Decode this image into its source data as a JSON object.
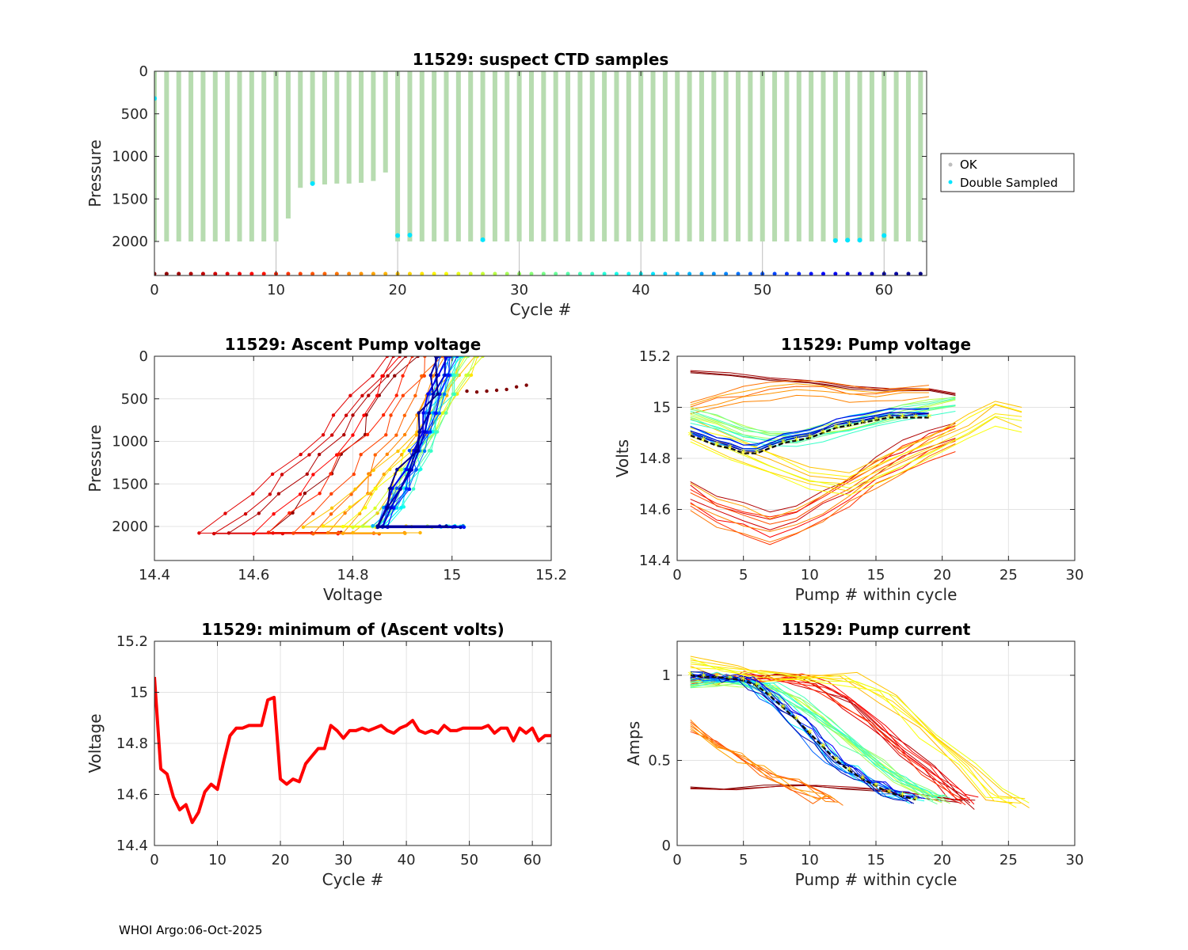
{
  "footer": "WHOI Argo:06-Oct-2025",
  "chart_data": [
    {
      "id": "ctd",
      "type": "scatter",
      "title": "11529: suspect CTD samples",
      "xlabel": "Cycle #",
      "ylabel": "Pressure",
      "xlim": [
        0,
        63.5
      ],
      "ylim": [
        2400,
        0
      ],
      "xticks": [
        0,
        10,
        20,
        30,
        40,
        50,
        60
      ],
      "yticks": [
        0,
        500,
        1000,
        1500,
        2000
      ],
      "legend": {
        "position": "right",
        "entries": [
          "OK",
          "Double Sampled"
        ]
      },
      "ok_profiles": {
        "cycles": [
          0,
          1,
          2,
          3,
          4,
          5,
          6,
          7,
          8,
          9,
          10,
          11,
          12,
          13,
          14,
          15,
          16,
          17,
          18,
          19,
          20,
          21,
          22,
          23,
          24,
          25,
          26,
          27,
          28,
          29,
          30,
          31,
          32,
          33,
          34,
          35,
          36,
          37,
          38,
          39,
          40,
          41,
          42,
          43,
          44,
          45,
          46,
          47,
          48,
          49,
          50,
          51,
          52,
          53,
          54,
          55,
          56,
          57,
          58,
          59,
          60,
          61,
          62,
          63
        ],
        "top": 0,
        "max_pressure": [
          2000,
          2000,
          2000,
          2000,
          2000,
          2000,
          2000,
          2000,
          2000,
          2000,
          2000,
          1730,
          1370,
          1330,
          1330,
          1320,
          1320,
          1310,
          1290,
          1190,
          2000,
          2000,
          2000,
          2000,
          2000,
          2000,
          2000,
          2000,
          2000,
          2000,
          2000,
          2000,
          2000,
          2000,
          2000,
          2000,
          2000,
          2000,
          2000,
          2000,
          2000,
          2000,
          2000,
          2000,
          2000,
          2000,
          2000,
          2000,
          2000,
          2000,
          2000,
          2000,
          2000,
          2000,
          2000,
          2000,
          2000,
          2000,
          2000,
          2000,
          2000,
          2000,
          2000,
          2000
        ]
      },
      "double_sampled": [
        {
          "cycle": 0,
          "pressure": 320
        },
        {
          "cycle": 13,
          "pressure": 1320
        },
        {
          "cycle": 20,
          "pressure": 1930
        },
        {
          "cycle": 21,
          "pressure": 1925
        },
        {
          "cycle": 27,
          "pressure": 1980
        },
        {
          "cycle": 56,
          "pressure": 1990
        },
        {
          "cycle": 57,
          "pressure": 1985
        },
        {
          "cycle": 58,
          "pressure": 1985
        },
        {
          "cycle": 60,
          "pressure": 1930
        }
      ],
      "cycle_markers_pressure": 2380,
      "drop_lines_cycles": [
        10,
        20,
        30,
        40,
        50,
        60
      ]
    },
    {
      "id": "ascent",
      "type": "line",
      "title": "11529: Ascent Pump voltage",
      "xlabel": "Voltage",
      "ylabel": "Pressure",
      "xlim": [
        14.4,
        15.2
      ],
      "ylim": [
        2400,
        0
      ],
      "xticks": [
        14.4,
        14.6,
        14.8,
        15,
        15.2
      ],
      "yticks": [
        0,
        500,
        1000,
        1500,
        2000
      ],
      "note": "one pressure-vs-voltage profile per cycle, colored by cycle (jet colormap)",
      "profile_endpoints": {
        "cycles": [
          1,
          3,
          5,
          6,
          8,
          10,
          12,
          14,
          16,
          18,
          19,
          20,
          22,
          24,
          26,
          28,
          30,
          32,
          34,
          36,
          38,
          40,
          42,
          44,
          46,
          48,
          50,
          52,
          54,
          56,
          58,
          60,
          62
        ],
        "bottom_voltage": [
          14.63,
          14.55,
          14.52,
          14.49,
          14.6,
          14.63,
          14.68,
          14.72,
          14.75,
          14.78,
          14.8,
          14.7,
          14.74,
          14.78,
          14.8,
          14.82,
          14.84,
          14.85,
          14.85,
          14.86,
          14.87,
          14.86,
          14.85,
          14.84,
          14.85,
          14.86,
          14.86,
          14.87,
          14.87,
          14.85,
          14.86,
          14.85,
          14.85
        ],
        "top_voltage": [
          14.92,
          14.9,
          14.88,
          14.87,
          14.9,
          14.93,
          14.96,
          14.97,
          14.98,
          15.0,
          15.02,
          15.05,
          15.06,
          15.04,
          15.05,
          15.04,
          15.03,
          15.02,
          15.03,
          15.02,
          15.0,
          15.01,
          15.0,
          15.0,
          15.0,
          15.0,
          14.99,
          15.0,
          14.99,
          14.99,
          14.99,
          14.98,
          14.98
        ]
      },
      "outlier_cycle0": [
        {
          "voltage": 15.03,
          "pressure": 410
        },
        {
          "voltage": 15.05,
          "pressure": 420
        },
        {
          "voltage": 15.07,
          "pressure": 410
        },
        {
          "voltage": 15.09,
          "pressure": 400
        },
        {
          "voltage": 15.11,
          "pressure": 390
        },
        {
          "voltage": 15.13,
          "pressure": 360
        },
        {
          "voltage": 15.15,
          "pressure": 340
        }
      ]
    },
    {
      "id": "pumpvolt",
      "type": "line",
      "title": "11529: Pump voltage",
      "xlabel": "Pump # within cycle",
      "ylabel": "Volts",
      "xlim": [
        0,
        30
      ],
      "ylim": [
        14.4,
        15.2
      ],
      "xticks": [
        0,
        5,
        10,
        15,
        20,
        25,
        30
      ],
      "yticks": [
        14.4,
        14.6,
        14.8,
        15,
        15.2
      ],
      "yticklabels": [
        "14.4",
        "14.6",
        "14.8",
        "15",
        "15.2"
      ],
      "blue_group": {
        "x": [
          1,
          2,
          3,
          4,
          5,
          6,
          7,
          8,
          9,
          10,
          11,
          12,
          13,
          14,
          15,
          16,
          17,
          18,
          19
        ],
        "y": [
          14.91,
          14.89,
          14.87,
          14.86,
          14.84,
          14.84,
          14.86,
          14.88,
          14.89,
          14.9,
          14.92,
          14.94,
          14.95,
          14.96,
          14.97,
          14.98,
          14.98,
          14.98,
          14.98
        ]
      },
      "green_group": {
        "x": [
          1,
          3,
          5,
          7,
          9,
          11,
          13,
          15,
          17,
          19,
          21
        ],
        "y": [
          14.97,
          14.94,
          14.9,
          14.88,
          14.88,
          14.9,
          14.92,
          14.95,
          14.98,
          15.0,
          15.02
        ]
      },
      "red_group": {
        "x": [
          1,
          3,
          5,
          7,
          9,
          11,
          13,
          15,
          17,
          19,
          21
        ],
        "y": [
          14.66,
          14.6,
          14.57,
          14.53,
          14.55,
          14.62,
          14.68,
          14.75,
          14.81,
          14.86,
          14.9
        ]
      },
      "yellow_group": {
        "x": [
          1,
          4,
          7,
          10,
          13,
          16,
          19,
          22,
          24,
          26
        ],
        "y": [
          14.9,
          14.84,
          14.78,
          14.72,
          14.7,
          14.76,
          14.84,
          14.92,
          14.98,
          14.95
        ]
      },
      "orange_group": {
        "x": [
          1,
          3,
          5,
          7,
          9,
          11,
          13,
          15,
          17,
          19
        ],
        "y": [
          15.0,
          15.03,
          15.05,
          15.07,
          15.08,
          15.07,
          15.06,
          15.05,
          15.06,
          15.07
        ]
      },
      "dark_red_group": {
        "x": [
          1,
          4,
          7,
          10,
          13,
          16,
          19,
          21
        ],
        "y": [
          15.14,
          15.13,
          15.11,
          15.1,
          15.08,
          15.07,
          15.07,
          15.05
        ]
      }
    },
    {
      "id": "minvolt",
      "type": "line",
      "title": "11529: minimum of (Ascent volts)",
      "xlabel": "Cycle #",
      "ylabel": "Voltage",
      "xlim": [
        0,
        63
      ],
      "ylim": [
        14.4,
        15.2
      ],
      "xticks": [
        0,
        10,
        20,
        30,
        40,
        50,
        60
      ],
      "yticks": [
        14.4,
        14.6,
        14.8,
        15,
        15.2
      ],
      "yticklabels": [
        "14.4",
        "14.6",
        "14.8",
        "15",
        "15.2"
      ],
      "series": [
        {
          "name": "min ascent voltage",
          "color": "#ff0000",
          "x": [
            0,
            1,
            2,
            3,
            4,
            5,
            6,
            7,
            8,
            9,
            10,
            11,
            12,
            13,
            14,
            15,
            16,
            17,
            18,
            19,
            20,
            21,
            22,
            23,
            24,
            25,
            26,
            27,
            28,
            29,
            30,
            31,
            32,
            33,
            34,
            35,
            36,
            37,
            38,
            39,
            40,
            41,
            42,
            43,
            44,
            45,
            46,
            47,
            48,
            49,
            50,
            51,
            52,
            53,
            54,
            55,
            56,
            57,
            58,
            59,
            60,
            61,
            62,
            63
          ],
          "y": [
            15.06,
            14.7,
            14.68,
            14.59,
            14.54,
            14.56,
            14.49,
            14.53,
            14.61,
            14.64,
            14.62,
            14.73,
            14.83,
            14.86,
            14.86,
            14.87,
            14.87,
            14.87,
            14.97,
            14.98,
            14.66,
            14.64,
            14.66,
            14.65,
            14.72,
            14.75,
            14.78,
            14.78,
            14.87,
            14.85,
            14.82,
            14.85,
            14.85,
            14.86,
            14.85,
            14.86,
            14.87,
            14.85,
            14.84,
            14.86,
            14.87,
            14.89,
            14.85,
            14.84,
            14.85,
            14.84,
            14.87,
            14.85,
            14.85,
            14.86,
            14.86,
            14.86,
            14.86,
            14.87,
            14.84,
            14.86,
            14.86,
            14.81,
            14.86,
            14.84,
            14.86,
            14.81,
            14.83,
            14.83
          ]
        }
      ]
    },
    {
      "id": "pumpcurr",
      "type": "line",
      "title": "11529: Pump current",
      "xlabel": "Pump # within cycle",
      "ylabel": "Amps",
      "xlim": [
        0,
        30
      ],
      "ylim": [
        0,
        1.2
      ],
      "xticks": [
        0,
        5,
        10,
        15,
        20,
        25,
        30
      ],
      "yticks": [
        0,
        0.5,
        1
      ],
      "yticklabels": [
        "0",
        "0.5",
        "1"
      ],
      "blue_group": {
        "x": [
          1,
          2,
          3,
          4,
          5,
          6,
          7,
          8,
          9,
          10,
          11,
          12,
          13,
          14,
          15,
          16,
          17,
          18
        ],
        "y": [
          1.0,
          0.99,
          0.99,
          0.98,
          0.97,
          0.94,
          0.88,
          0.81,
          0.74,
          0.66,
          0.58,
          0.5,
          0.44,
          0.39,
          0.35,
          0.31,
          0.29,
          0.27
        ]
      },
      "green_group": {
        "x": [
          1,
          3,
          5,
          7,
          9,
          11,
          13,
          15,
          17,
          19,
          20
        ],
        "y": [
          0.95,
          0.96,
          0.96,
          0.93,
          0.85,
          0.74,
          0.61,
          0.49,
          0.38,
          0.3,
          0.27
        ]
      },
      "red_group": {
        "x": [
          1,
          3,
          5,
          7,
          9,
          11,
          13,
          15,
          17,
          19,
          21,
          22
        ],
        "y": [
          0.98,
          0.98,
          0.99,
          0.99,
          0.98,
          0.93,
          0.83,
          0.7,
          0.56,
          0.43,
          0.3,
          0.25
        ]
      },
      "yellow_group": {
        "x": [
          1,
          4,
          7,
          10,
          13,
          16,
          19,
          22,
          24,
          26
        ],
        "y": [
          1.08,
          1.02,
          1.0,
          1.0,
          0.98,
          0.87,
          0.67,
          0.46,
          0.3,
          0.26
        ]
      },
      "orange_group": {
        "x": [
          1,
          3,
          5,
          7,
          9,
          11,
          12
        ],
        "y": [
          0.7,
          0.6,
          0.52,
          0.43,
          0.35,
          0.28,
          0.27
        ]
      },
      "dark_red_group": {
        "x": [
          1,
          4,
          7,
          10,
          13,
          16,
          18,
          20,
          22
        ],
        "y": [
          0.34,
          0.33,
          0.35,
          0.35,
          0.34,
          0.32,
          0.3,
          0.28,
          0.26
        ]
      }
    }
  ]
}
